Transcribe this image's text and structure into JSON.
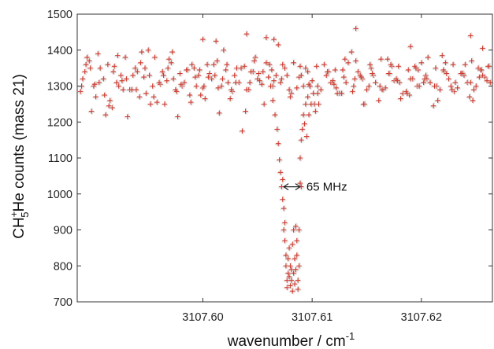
{
  "chart_data": {
    "type": "scatter",
    "title": "",
    "xlabel": "wavenumber / cm",
    "xlabel_superscript": "-1",
    "ylabel": {
      "species_base": "CH",
      "species_subscript": "5",
      "species_superscript": "+",
      "species_suffix": "He",
      "rest": " counts (mass 21)"
    },
    "xlim": [
      3107.5885,
      3107.6265
    ],
    "ylim": [
      700,
      1500
    ],
    "x_ticks": [
      3107.6,
      3107.61,
      3107.62
    ],
    "x_tick_labels": [
      "3107.60",
      "3107.61",
      "3107.62"
    ],
    "y_ticks": [
      700,
      800,
      900,
      1000,
      1100,
      1200,
      1300,
      1400,
      1500
    ],
    "y_tick_labels": [
      "700",
      "800",
      "900",
      "1000",
      "1100",
      "1200",
      "1300",
      "1400",
      "1500"
    ],
    "grid": false,
    "marker": "+",
    "series": [
      {
        "color": "#d23a2e",
        "shadow_color": "#cfcfcf",
        "x": [
          3107.5888,
          3107.5892,
          3107.5896,
          3107.59,
          3107.5904,
          3107.5909,
          3107.5913,
          3107.5917,
          3107.5921,
          3107.5925,
          3107.5929,
          3107.5933,
          3107.5938,
          3107.5942,
          3107.5946,
          3107.595,
          3107.5954,
          3107.5958,
          3107.5963,
          3107.5967,
          3107.5971,
          3107.5975,
          3107.5979,
          3107.5983,
          3107.5988,
          3107.5992,
          3107.5996,
          3107.6,
          3107.6004,
          3107.6008,
          3107.6013,
          3107.6017,
          3107.6021,
          3107.6025,
          3107.6029,
          3107.6033,
          3107.6038,
          3107.6042,
          3107.6046,
          3107.605,
          3107.6054,
          3107.6058,
          3107.6063,
          3107.6067,
          3107.6071,
          3107.6075,
          3107.6079,
          3107.6083,
          3107.6088,
          3107.6092,
          3107.6096,
          3107.61,
          3107.6104,
          3107.6108,
          3107.6113,
          3107.6117,
          3107.6121,
          3107.6125,
          3107.6129,
          3107.6133,
          3107.6138,
          3107.6142,
          3107.6146,
          3107.615,
          3107.6154,
          3107.6158,
          3107.6163,
          3107.6167,
          3107.6171,
          3107.6175,
          3107.6179,
          3107.6183,
          3107.6188,
          3107.6192,
          3107.6196,
          3107.62,
          3107.6204,
          3107.6208,
          3107.6213,
          3107.6217,
          3107.6221,
          3107.6225,
          3107.6229,
          3107.6233,
          3107.6238,
          3107.6242,
          3107.6246,
          3107.625,
          3107.6254,
          3107.6258,
          3107.6262,
          3107.589,
          3107.5898,
          3107.5906,
          3107.5915,
          3107.5923,
          3107.5931,
          3107.594,
          3107.5948,
          3107.5956,
          3107.5965,
          3107.5973,
          3107.5981,
          3107.599,
          3107.5998,
          3107.6006,
          3107.6015,
          3107.6023,
          3107.6031,
          3107.604,
          3107.6048,
          3107.6056,
          3107.6065,
          3107.6073,
          3107.6081,
          3107.609,
          3107.6098,
          3107.6106,
          3107.6115,
          3107.6123,
          3107.6131,
          3107.614,
          3107.6148,
          3107.6156,
          3107.6165,
          3107.6173,
          3107.6181,
          3107.619,
          3107.6198,
          3107.6206,
          3107.6215,
          3107.6223,
          3107.6231,
          3107.624,
          3107.6248,
          3107.6256,
          3107.5894,
          3107.5902,
          3107.5911,
          3107.5919,
          3107.5927,
          3107.5936,
          3107.5944,
          3107.5952,
          3107.5961,
          3107.5969,
          3107.5977,
          3107.5986,
          3107.5994,
          3107.6002,
          3107.6011,
          3107.6019,
          3107.6027,
          3107.6036,
          3107.6044,
          3107.6052,
          3107.6061,
          3107.6069,
          3107.6077,
          3107.6086,
          3107.6094,
          3107.6102,
          3107.6111,
          3107.6119,
          3107.6127,
          3107.6136,
          3107.6144,
          3107.6152,
          3107.6161,
          3107.6169,
          3107.6177,
          3107.6186,
          3107.6194,
          3107.6202,
          3107.6211,
          3107.6219,
          3107.6227,
          3107.6236,
          3107.6244,
          3107.6252,
          3107.626,
          3107.5889,
          3107.5897,
          3107.5905,
          3107.5914,
          3107.5922,
          3107.593,
          3107.5939,
          3107.5947,
          3107.5955,
          3107.5964,
          3107.5972,
          3107.598,
          3107.5989,
          3107.5997,
          3107.6005,
          3107.6014,
          3107.6022,
          3107.603,
          3107.6039,
          3107.6047,
          3107.6055,
          3107.6064,
          3107.6072,
          3107.608,
          3107.6089,
          3107.6097,
          3107.6105,
          3107.6114,
          3107.6122,
          3107.613,
          3107.6139,
          3107.6147,
          3107.6155,
          3107.6164,
          3107.6172,
          3107.618,
          3107.6189,
          3107.6197,
          3107.6205,
          3107.6214,
          3107.6222,
          3107.623,
          3107.6239,
          3107.6247,
          3107.6255,
          3107.6263,
          3107.5893,
          3107.5901,
          3107.591,
          3107.5918,
          3107.5926,
          3107.5935,
          3107.5943,
          3107.5951,
          3107.596,
          3107.5968,
          3107.5976,
          3107.5985,
          3107.5993,
          3107.6001,
          3107.601,
          3107.6018,
          3107.6026,
          3107.6035,
          3107.6043,
          3107.6051,
          3107.606,
          3107.612,
          3107.6128,
          3107.6137,
          3107.6145,
          3107.6153,
          3107.6162,
          3107.617,
          3107.6178,
          3107.6187,
          3107.6195,
          3107.6203,
          3107.6212,
          3107.622,
          3107.6228,
          3107.6237,
          3107.6245,
          3107.6253,
          3107.6261,
          3107.6062,
          3107.6064,
          3107.6066,
          3107.6068,
          3107.6069,
          3107.607,
          3107.6071,
          3107.6072,
          3107.6073,
          3107.6073,
          3107.6074,
          3107.6074,
          3107.6075,
          3107.6075,
          3107.6076,
          3107.6076,
          3107.6077,
          3107.6077,
          3107.6078,
          3107.6078,
          3107.6079,
          3107.6079,
          3107.608,
          3107.608,
          3107.6081,
          3107.6081,
          3107.6082,
          3107.6082,
          3107.6083,
          3107.6083,
          3107.6084,
          3107.6084,
          3107.6085,
          3107.6085,
          3107.6086,
          3107.6086,
          3107.6087,
          3107.6087,
          3107.6088,
          3107.6088,
          3107.6089,
          3107.6089,
          3107.609,
          3107.609,
          3107.6091,
          3107.6092,
          3107.6093,
          3107.6094,
          3107.6095,
          3107.6096,
          3107.6097,
          3107.6098,
          3107.6099,
          3107.6101,
          3107.6103,
          3107.6105
        ],
        "y": [
          1285,
          1340,
          1370,
          1300,
          1390,
          1320,
          1360,
          1240,
          1310,
          1330,
          1380,
          1290,
          1350,
          1270,
          1325,
          1400,
          1300,
          1255,
          1340,
          1315,
          1365,
          1290,
          1335,
          1310,
          1275,
          1350,
          1330,
          1295,
          1360,
          1320,
          1370,
          1300,
          1345,
          1265,
          1330,
          1310,
          1355,
          1290,
          1340,
          1320,
          1305,
          1365,
          1345,
          1330,
          1310,
          1350,
          1290,
          1365,
          1325,
          1300,
          1340,
          1315,
          1355,
          1290,
          1330,
          1310,
          1345,
          1280,
          1325,
          1365,
          1300,
          1340,
          1320,
          1290,
          1350,
          1310,
          1375,
          1295,
          1335,
          1315,
          1355,
          1280,
          1345,
          1320,
          1300,
          1365,
          1330,
          1310,
          1350,
          1290,
          1340,
          1320,
          1360,
          1295,
          1335,
          1310,
          1370,
          1300,
          1345,
          1325,
          1355,
          1320,
          1230,
          1350,
          1260,
          1300,
          1215,
          1340,
          1280,
          1380,
          1250,
          1320,
          1300,
          1360,
          1275,
          1335,
          1225,
          1310,
          1350,
          1290,
          1380,
          1250,
          1315,
          1360,
          1280,
          1330,
          1300,
          1250,
          1340,
          1280,
          1310,
          1370,
          1250,
          1330,
          1290,
          1355,
          1265,
          1320,
          1300,
          1380,
          1260,
          1335,
          1310,
          1360,
          1290,
          1330,
          1380,
          1270,
          1220,
          1355,
          1290,
          1330,
          1395,
          1250,
          1305,
          1375,
          1215,
          1345,
          1300,
          1265,
          1330,
          1400,
          1285,
          1175,
          1340,
          1315,
          1360,
          1415,
          1330,
          1295,
          1350,
          1250,
          1360,
          1315,
          1280,
          1395,
          1330,
          1300,
          1260,
          1375,
          1320,
          1285,
          1355,
          1310,
          1245,
          1385,
          1300,
          1335,
          1270,
          1350,
          1315,
          1300,
          1350,
          1310,
          1245,
          1385,
          1320,
          1290,
          1350,
          1270,
          1330,
          1395,
          1305,
          1255,
          1345,
          1325,
          1295,
          1360,
          1310,
          1230,
          1370,
          1340,
          1300,
          1320,
          1270,
          1355,
          1305,
          1280,
          1340,
          1295,
          1375,
          1320,
          1250,
          1335,
          1290,
          1360,
          1310,
          1275,
          1345,
          1320,
          1300,
          1365,
          1285,
          1330,
          1260,
          1345,
          1310,
          1360,
          1305,
          1275,
          1340,
          1315,
          1290,
          1365,
          1330,
          1310,
          1350,
          1285,
          1345,
          1325,
          1300,
          1360,
          1320,
          1290,
          1350,
          1310,
          1335,
          1325,
          1305,
          1345,
          1285,
          1325,
          1360,
          1300,
          1335,
          1315,
          1280,
          1350,
          1320,
          1300,
          1345,
          1290,
          1335,
          1310,
          1325,
          1355,
          1300,
          1260,
          1220,
          1180,
          1140,
          1095,
          1060,
          1020,
          985,
          1040,
          960,
          900,
          920,
          870,
          830,
          800,
          760,
          740,
          780,
          820,
          850,
          770,
          745,
          800,
          760,
          790,
          730,
          860,
          900,
          780,
          820,
          750,
          790,
          910,
          830,
          870,
          735,
          760,
          900,
          800,
          1030,
          1100,
          1020,
          1150,
          1180,
          1220,
          1195,
          1250,
          1160,
          1270,
          1220,
          1300,
          1250,
          1280,
          1230,
          1300
        ]
      }
    ],
    "annotations": [
      {
        "text": "65 MHz",
        "x_start": 3107.6074,
        "x_end": 3107.6089,
        "y": 1020,
        "arrow": "double-headed"
      }
    ],
    "extra_points_near_tick_labels": [
      {
        "x": 3107.614,
        "y": 1460
      },
      {
        "x": 3107.6,
        "y": 1430
      },
      {
        "x": 3107.604,
        "y": 1445
      },
      {
        "x": 3107.6065,
        "y": 1430
      },
      {
        "x": 3107.619,
        "y": 1410
      },
      {
        "x": 3107.6245,
        "y": 1440
      },
      {
        "x": 3107.6012,
        "y": 1425
      },
      {
        "x": 3107.6058,
        "y": 1435
      },
      {
        "x": 3107.6256,
        "y": 1405
      }
    ]
  }
}
